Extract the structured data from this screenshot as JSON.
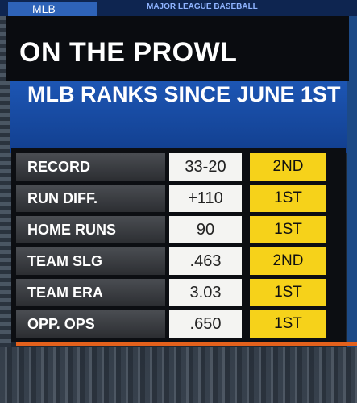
{
  "header": {
    "tab": "MLB",
    "brand": "MAJOR LEAGUE BASEBALL",
    "title": "ON THE PROWL",
    "subtitle": "MLB RANKS SINCE JUNE 1ST"
  },
  "table": {
    "rows": [
      [
        "RECORD",
        "33-20",
        "2ND"
      ],
      [
        "RUN DIFF.",
        "+110",
        "1ST"
      ],
      [
        "HOME RUNS",
        "90",
        "1ST"
      ],
      [
        "TEAM SLG",
        ".463",
        "2ND"
      ],
      [
        "TEAM ERA",
        "3.03",
        "1ST"
      ],
      [
        "OPP. OPS",
        ".650",
        "1ST"
      ]
    ]
  }
}
